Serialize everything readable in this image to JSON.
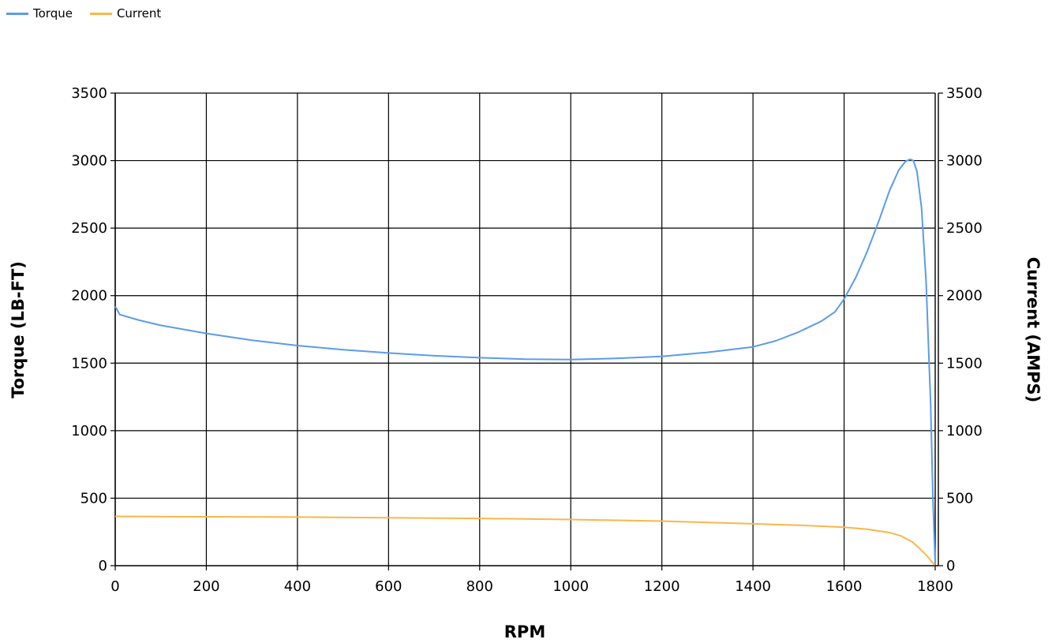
{
  "legend": [
    {
      "label": "Torque",
      "color": "#5b9bea"
    },
    {
      "label": "Current",
      "color": "#fbb64b"
    }
  ],
  "chart_data": {
    "type": "line",
    "title": "",
    "xlabel": "RPM",
    "ylabel": "Torque (LB-FT)",
    "y2label": "Current (AMPS)",
    "xlim": [
      0,
      1800
    ],
    "ylim": [
      0,
      3500
    ],
    "y2lim": [
      0,
      3500
    ],
    "xticks": [
      0,
      200,
      400,
      600,
      800,
      1000,
      1200,
      1400,
      1600,
      1800
    ],
    "yticks": [
      0,
      500,
      1000,
      1500,
      2000,
      2500,
      3000,
      3500
    ],
    "grid": true,
    "legend_position": "top-left",
    "series": [
      {
        "name": "Torque",
        "axis": "left",
        "color": "#5b9bea",
        "x": [
          0,
          10,
          50,
          100,
          200,
          300,
          400,
          500,
          600,
          700,
          800,
          900,
          1000,
          1100,
          1200,
          1300,
          1400,
          1450,
          1500,
          1550,
          1580,
          1600,
          1625,
          1650,
          1675,
          1700,
          1720,
          1735,
          1745,
          1752,
          1760,
          1770,
          1780,
          1790,
          1795,
          1800
        ],
        "y": [
          1920,
          1860,
          1820,
          1780,
          1720,
          1670,
          1630,
          1600,
          1575,
          1555,
          1540,
          1530,
          1527,
          1535,
          1550,
          1580,
          1620,
          1665,
          1730,
          1810,
          1880,
          1975,
          2130,
          2320,
          2540,
          2780,
          2930,
          2995,
          3010,
          3000,
          2920,
          2650,
          2100,
          1200,
          500,
          10
        ]
      },
      {
        "name": "Current",
        "axis": "right",
        "color": "#fbb64b",
        "x": [
          0,
          200,
          400,
          600,
          800,
          1000,
          1200,
          1400,
          1500,
          1600,
          1650,
          1700,
          1725,
          1750,
          1765,
          1780,
          1790,
          1795,
          1800
        ],
        "y": [
          365,
          362,
          360,
          355,
          350,
          342,
          330,
          310,
          300,
          285,
          270,
          245,
          220,
          175,
          130,
          80,
          40,
          20,
          5
        ]
      }
    ]
  }
}
